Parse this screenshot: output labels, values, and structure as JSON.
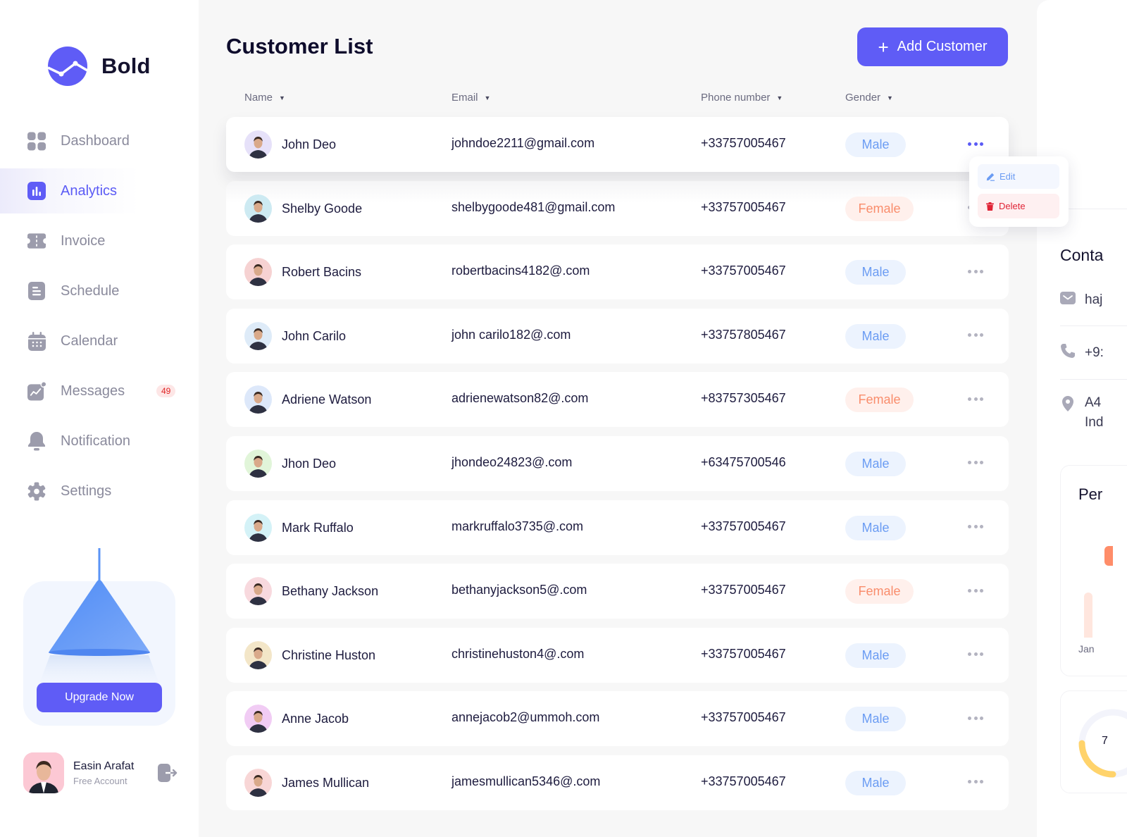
{
  "brand": {
    "name": "Bold",
    "logo_color": "#5f5cf6"
  },
  "sidebar": {
    "items": [
      {
        "label": "Dashboard",
        "icon": "grid-icon",
        "active": false
      },
      {
        "label": "Analytics",
        "icon": "bar-chart-icon",
        "active": true
      },
      {
        "label": "Invoice",
        "icon": "ticket-icon",
        "active": false
      },
      {
        "label": "Schedule",
        "icon": "document-icon",
        "active": false
      },
      {
        "label": "Calendar",
        "icon": "calendar-icon",
        "active": false
      },
      {
        "label": "Messages",
        "icon": "chart-message-icon",
        "active": false,
        "badge": "49"
      },
      {
        "label": "Notification",
        "icon": "bell-icon",
        "active": false
      },
      {
        "label": "Settings",
        "icon": "gear-icon",
        "active": false
      }
    ],
    "upgrade": {
      "button_label": "Upgrade Now"
    },
    "user": {
      "name": "Easin Arafat",
      "plan": "Free Account"
    }
  },
  "main": {
    "title": "Customer List",
    "add_button": {
      "icon": "+",
      "label": "Add Customer"
    },
    "columns": [
      {
        "label": "Name",
        "sort_icon": "▼"
      },
      {
        "label": "Email",
        "sort_icon": "▼"
      },
      {
        "label": "Phone number",
        "sort_icon": "▼"
      },
      {
        "label": "Gender",
        "sort_icon": "▼"
      }
    ],
    "rows": [
      {
        "name": "John Deo",
        "email": "johndoe2211@gmail.com",
        "phone": "+33757005467",
        "gender": "Male",
        "avatar_bg": "#e6e1f9"
      },
      {
        "name": "Shelby Goode",
        "email": "shelbygoode481@gmail.com",
        "phone": "+33757005467",
        "gender": "Female",
        "avatar_bg": "#cdeaf2"
      },
      {
        "name": "Robert Bacins",
        "email": "robertbacins4182@.com",
        "phone": "+33757005467",
        "gender": "Male",
        "avatar_bg": "#f6d2d2"
      },
      {
        "name": "John Carilo",
        "email": "john carilo182@.com",
        "phone": "+33757805467",
        "gender": "Male",
        "avatar_bg": "#deebf8"
      },
      {
        "name": "Adriene Watson",
        "email": "adrienewatson82@.com",
        "phone": "+83757305467",
        "gender": "Female",
        "avatar_bg": "#dde8fa"
      },
      {
        "name": "Jhon Deo",
        "email": "jhondeo24823@.com",
        "phone": "+63475700546",
        "gender": "Male",
        "avatar_bg": "#e1f5d9"
      },
      {
        "name": "Mark Ruffalo",
        "email": "markruffalo3735@.com",
        "phone": "+33757005467",
        "gender": "Male",
        "avatar_bg": "#d4f2f7"
      },
      {
        "name": "Bethany Jackson",
        "email": "bethanyjackson5@.com",
        "phone": "+33757005467",
        "gender": "Female",
        "avatar_bg": "#f8d9de"
      },
      {
        "name": "Christine Huston",
        "email": "christinehuston4@.com",
        "phone": "+33757005467",
        "gender": "Male",
        "avatar_bg": "#f3e6c8"
      },
      {
        "name": "Anne Jacob",
        "email": "annejacob2@ummoh.com",
        "phone": "+33757005467",
        "gender": "Male",
        "avatar_bg": "#f1ccf4"
      },
      {
        "name": "James Mullican",
        "email": "jamesmullican5346@.com",
        "phone": "+33757005467",
        "gender": "Male",
        "avatar_bg": "#f8d6d6"
      }
    ],
    "row_menu": {
      "edit_label": "Edit",
      "delete_label": "Delete"
    }
  },
  "right_panel": {
    "contact_title": "Conta",
    "email_partial": "haj",
    "phone_partial": "+9:",
    "address_line1": "A4",
    "address_line2": "Ind",
    "performance_title": "Per",
    "month_label": "Jan",
    "gauge_value_partial": "7"
  },
  "colors": {
    "accent": "#5f5cf6",
    "male_pill_bg": "#ecf3fe",
    "male_pill_text": "#6b9cf3",
    "female_pill_bg": "#fff0ec",
    "female_pill_text": "#f98d6c",
    "badge_bg": "#fde6e6",
    "badge_text": "#e02424",
    "delete_text": "#e02436"
  }
}
